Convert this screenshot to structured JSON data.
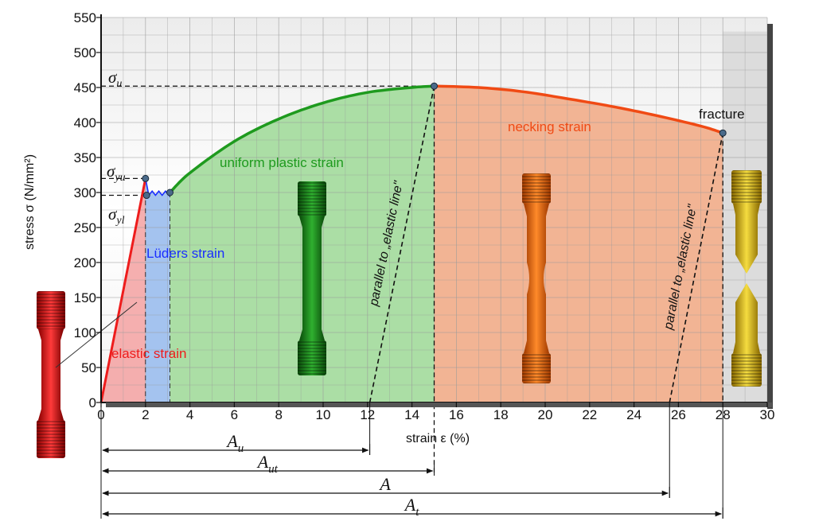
{
  "chart_data": {
    "type": "line",
    "title": "",
    "xlabel": "strain ε (%)",
    "ylabel": "stress σ (N/mm²)",
    "xlim": [
      0,
      30
    ],
    "ylim": [
      0,
      550
    ],
    "x_ticks": [
      0,
      2,
      4,
      6,
      8,
      10,
      12,
      14,
      16,
      18,
      20,
      22,
      24,
      26,
      28,
      30
    ],
    "y_ticks": [
      0,
      50,
      100,
      150,
      200,
      250,
      300,
      350,
      400,
      450,
      500,
      550
    ],
    "grid": true,
    "series": [
      {
        "name": "elastic strain",
        "color": "#ee1c1c",
        "x": [
          0,
          2
        ],
        "y": [
          0,
          320
        ]
      },
      {
        "name": "Lüders strain",
        "color": "#1a2eff",
        "x": [
          2,
          2.15,
          2.3,
          2.45,
          2.6,
          2.75,
          2.9,
          3.05,
          3.1
        ],
        "y": [
          320,
          296,
          302,
          296,
          302,
          296,
          302,
          296,
          300
        ]
      },
      {
        "name": "uniform plastic strain",
        "color": "#1e9a1e",
        "x": [
          3.1,
          4,
          6,
          8,
          10,
          12,
          14,
          15
        ],
        "y": [
          300,
          328,
          373,
          405,
          428,
          443,
          450,
          452
        ]
      },
      {
        "name": "necking strain",
        "color": "#f04a14",
        "x": [
          15,
          17,
          19,
          21,
          23,
          25,
          27,
          28
        ],
        "y": [
          452,
          450,
          444,
          434,
          423,
          410,
          395,
          385
        ]
      }
    ],
    "points": {
      "yield_upper": [
        2,
        320
      ],
      "yield_lower": [
        2.05,
        296
      ],
      "luders_end": [
        3.1,
        300
      ],
      "ultimate": [
        15,
        452
      ],
      "fracture": [
        28,
        385
      ]
    },
    "elastic_unload_lines": [
      {
        "label": "parallel to „elastic line\"",
        "from": [
          12.1,
          0
        ],
        "to": [
          15,
          452
        ]
      },
      {
        "label": "parallel to „elastic line\"",
        "from": [
          25.6,
          0
        ],
        "to": [
          28,
          385
        ]
      }
    ],
    "stress_labels": [
      {
        "symbol": "σ",
        "sub": "u",
        "value": 452
      },
      {
        "symbol": "σ",
        "sub": "yu",
        "value": 320
      },
      {
        "symbol": "σ",
        "sub": "yl",
        "value": 296
      }
    ],
    "annotations": {
      "fracture": "fracture"
    },
    "elongations": [
      {
        "symbol": "A",
        "sub": "u",
        "end": 12.1
      },
      {
        "symbol": "A",
        "sub": "ut",
        "end": 15
      },
      {
        "symbol": "A",
        "sub": "",
        "end": 25.6
      },
      {
        "symbol": "A",
        "sub": "t",
        "end": 28
      }
    ],
    "region_colors": {
      "elastic": "#f4a6a6",
      "luders": "#9fc0ee",
      "uniform": "#a6dca0",
      "necking": "#f1b08e",
      "fracture": "#dcdcdc"
    },
    "specimen_colors": {
      "elastic": "#e01414",
      "uniform": "#168c16",
      "necking": "#f56b12",
      "fracture": "#e0c020"
    }
  }
}
